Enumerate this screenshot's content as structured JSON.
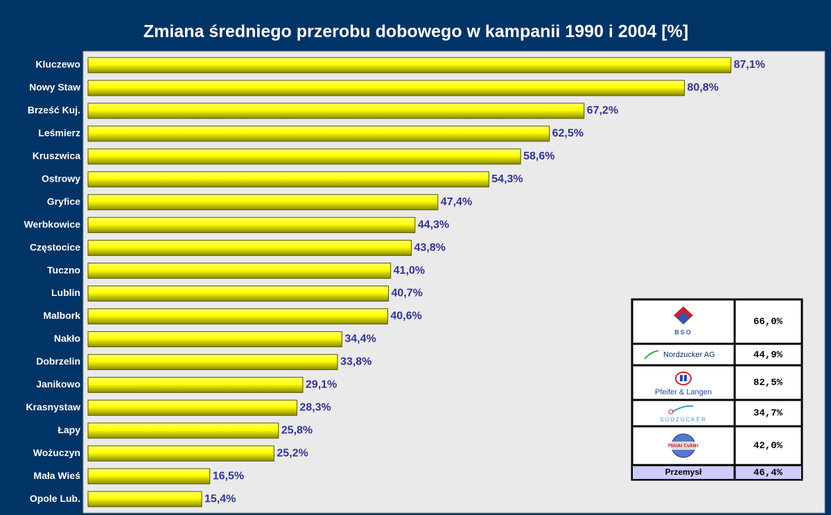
{
  "chart_data": {
    "type": "bar",
    "orientation": "horizontal",
    "title": "Zmiana średniego przerobu dobowego w kampanii 1990 i 2004 [%]",
    "categories": [
      "Kluczewo",
      "Nowy Staw",
      "Brześć Kuj.",
      "Leśmierz",
      "Kruszwica",
      "Ostrowy",
      "Gryfice",
      "Werbkowice",
      "Częstocice",
      "Tuczno",
      "Lublin",
      "Malbork",
      "Nakło",
      "Dobrzelin",
      "Janikowo",
      "Krasnystaw",
      "Łapy",
      "Wożuczyn",
      "Mała Wieś",
      "Opole Lub."
    ],
    "values": [
      87.1,
      80.8,
      67.2,
      62.5,
      58.6,
      54.3,
      47.4,
      44.3,
      43.8,
      41.0,
      40.7,
      40.6,
      34.4,
      33.8,
      29.1,
      28.3,
      25.8,
      25.2,
      16.5,
      15.4
    ],
    "value_labels": [
      "87,1%",
      "80,8%",
      "67,2%",
      "62,5%",
      "58,6%",
      "54,3%",
      "47,4%",
      "44,3%",
      "43,8%",
      "41,0%",
      "40,7%",
      "40,6%",
      "34,4%",
      "33,8%",
      "29,1%",
      "28,3%",
      "25,8%",
      "25,2%",
      "16,5%",
      "15,4%"
    ],
    "color": "#ffff00",
    "xlim": [
      0,
      100
    ]
  },
  "table": {
    "rows": [
      {
        "label": "BSO",
        "value": "66,0%"
      },
      {
        "label": "Nordzucker AG",
        "value": "44,9%"
      },
      {
        "label": "Pfeifer & Langen",
        "value": "82,5%"
      },
      {
        "label": "SÜDZUCKER",
        "value": "34,7%"
      },
      {
        "label": "Polski Cukier",
        "value": "42,0%"
      },
      {
        "label": "Przemysł",
        "value": "46,4%"
      }
    ]
  }
}
